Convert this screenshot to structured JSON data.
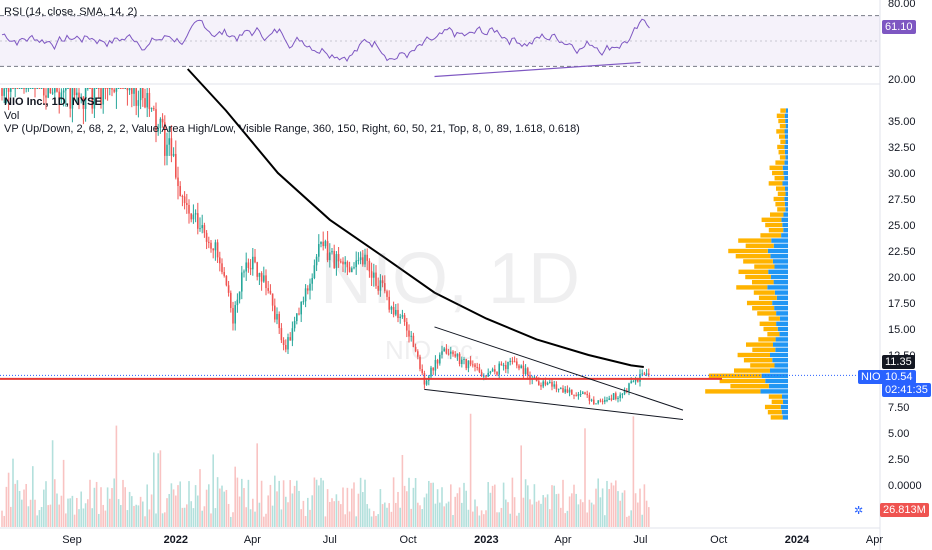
{
  "rsi_legend": "RSI (14, close, SMA, 14, 2)",
  "rsi_value": "61.10",
  "rsi_ticks": [
    "80.00",
    "20.00"
  ],
  "symbol_title": "NIO Inc., 1D, NYSE",
  "indicator_vol": "Vol",
  "indicator_vp": "VP (Up/Down, 2, 68, 2, 2, Value Area High/Low, Visible Range, 360, 150, Right, 60, 50, 21, Top, 8, 0, 89, 1.618, 0.618)",
  "watermark_big": "NIO, 1D",
  "watermark_small": "NIO Inc.",
  "price_tag_ma": "11.35",
  "price_tag_symbol": "NIO",
  "price_tag_last": "10.54",
  "price_tag_countdown": "02:41:35",
  "volume_tag": "26.813M",
  "colors": {
    "up": "#26a69a",
    "down": "#ef5350",
    "ma": "#000000",
    "rsi": "#7e57c2",
    "support": "#e53935",
    "vp_up": "#2196f3",
    "vp_down": "#ffb300",
    "bg": "#ffffff"
  },
  "chart_data": {
    "type": "candlestick",
    "xlabels": [
      "Sep",
      "2022",
      "Apr",
      "Jul",
      "Oct",
      "2023",
      "Apr",
      "Jul",
      "Oct",
      "2024",
      "Apr"
    ],
    "price_ticks": [
      "35.00",
      "32.50",
      "30.00",
      "27.50",
      "25.00",
      "22.50",
      "20.00",
      "17.50",
      "15.00",
      "12.50",
      "7.50",
      "5.00",
      "2.50",
      "0.0000"
    ],
    "price_path": [
      [
        "2021-08-15",
        39
      ],
      [
        "2021-09-01",
        37
      ],
      [
        "2021-10-01",
        38
      ],
      [
        "2021-11-01",
        40
      ],
      [
        "2021-12-01",
        36
      ],
      [
        "2021-12-25",
        32
      ],
      [
        "2022-01-15",
        26
      ],
      [
        "2022-02-15",
        23
      ],
      [
        "2022-03-10",
        16
      ],
      [
        "2022-03-25",
        22
      ],
      [
        "2022-04-15",
        20
      ],
      [
        "2022-05-10",
        13
      ],
      [
        "2022-06-01",
        18
      ],
      [
        "2022-06-20",
        23
      ],
      [
        "2022-07-15",
        21
      ],
      [
        "2022-08-10",
        22
      ],
      [
        "2022-09-05",
        18
      ],
      [
        "2022-10-01",
        15
      ],
      [
        "2022-10-20",
        10
      ],
      [
        "2022-11-15",
        13
      ],
      [
        "2023-01-01",
        10.5
      ],
      [
        "2023-02-01",
        12
      ],
      [
        "2023-03-01",
        10
      ],
      [
        "2023-04-01",
        9.3
      ],
      [
        "2023-05-10",
        8
      ],
      [
        "2023-06-10",
        8.7
      ],
      [
        "2023-07-01",
        10.5
      ]
    ],
    "ma_path": [
      [
        "2022-01-15",
        40
      ],
      [
        "2022-03-01",
        36
      ],
      [
        "2022-05-01",
        30
      ],
      [
        "2022-07-01",
        25.5
      ],
      [
        "2022-09-01",
        22
      ],
      [
        "2022-11-01",
        18.5
      ],
      [
        "2023-01-01",
        16
      ],
      [
        "2023-03-01",
        14
      ],
      [
        "2023-05-01",
        12.5
      ],
      [
        "2023-06-20",
        11.5
      ],
      [
        "2023-07-05",
        11.35
      ]
    ],
    "support_level": 10.2,
    "wedge_upper": [
      [
        "2022-11-01",
        15.2
      ],
      [
        "2023-08-20",
        7.2
      ]
    ],
    "wedge_lower": [
      [
        "2022-10-20",
        9.2
      ],
      [
        "2023-08-20",
        6.3
      ]
    ],
    "rsi_ylim": [
      20,
      80
    ],
    "rsi_upper_band": 70,
    "rsi_lower_band": 30,
    "rsi_divergence": [
      [
        "2022-11-01",
        22
      ],
      [
        "2023-07-01",
        33
      ]
    ],
    "volume_profile": [
      {
        "price": 35.0,
        "up": 0.05,
        "down": 0.12
      },
      {
        "price": 32.5,
        "up": 0.05,
        "down": 0.1
      },
      {
        "price": 30.0,
        "up": 0.08,
        "down": 0.2
      },
      {
        "price": 27.5,
        "up": 0.05,
        "down": 0.15
      },
      {
        "price": 25.0,
        "up": 0.1,
        "down": 0.3
      },
      {
        "price": 22.5,
        "up": 0.28,
        "down": 0.55
      },
      {
        "price": 20.0,
        "up": 0.3,
        "down": 0.45
      },
      {
        "price": 17.5,
        "up": 0.22,
        "down": 0.35
      },
      {
        "price": 15.0,
        "up": 0.18,
        "down": 0.25
      },
      {
        "price": 12.5,
        "up": 0.25,
        "down": 0.45
      },
      {
        "price": 10.0,
        "up": 0.4,
        "down": 0.8
      },
      {
        "price": 7.5,
        "up": 0.1,
        "down": 0.22
      }
    ]
  }
}
